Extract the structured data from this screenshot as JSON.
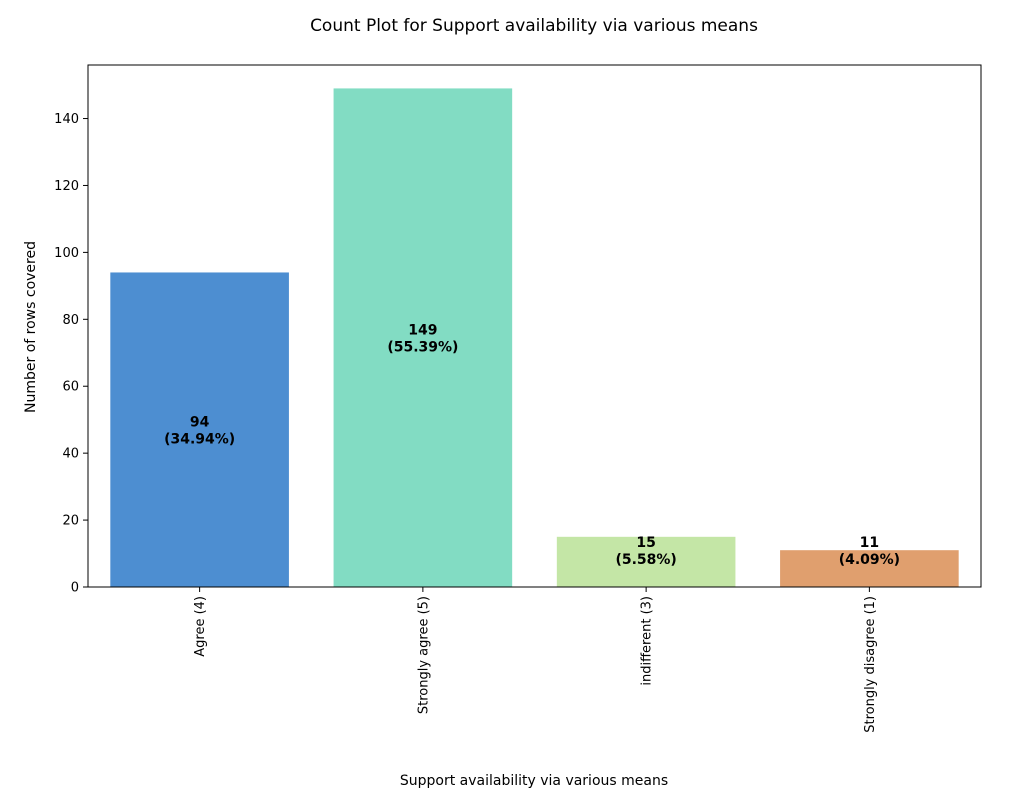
{
  "chart_data": {
    "type": "bar",
    "title": "Count Plot for Support availability via various means",
    "xlabel": "Support availability via various means",
    "ylabel": "Number of rows covered",
    "categories": [
      "Agree (4)",
      "Strongly agree (5)",
      "indifferent (3)",
      "Strongly disagree (1)"
    ],
    "values": [
      94,
      149,
      15,
      11
    ],
    "labels": [
      "(34.94%)",
      "(55.39%)",
      "(5.58%)",
      "(4.09%)"
    ],
    "colors": [
      "#4d8ed1",
      "#82dcc3",
      "#c4e6a6",
      "#e09f6e"
    ],
    "ylim": [
      0,
      156
    ],
    "yticks": [
      0,
      20,
      40,
      60,
      80,
      100,
      120,
      140
    ],
    "grid": false,
    "legend": "none"
  }
}
